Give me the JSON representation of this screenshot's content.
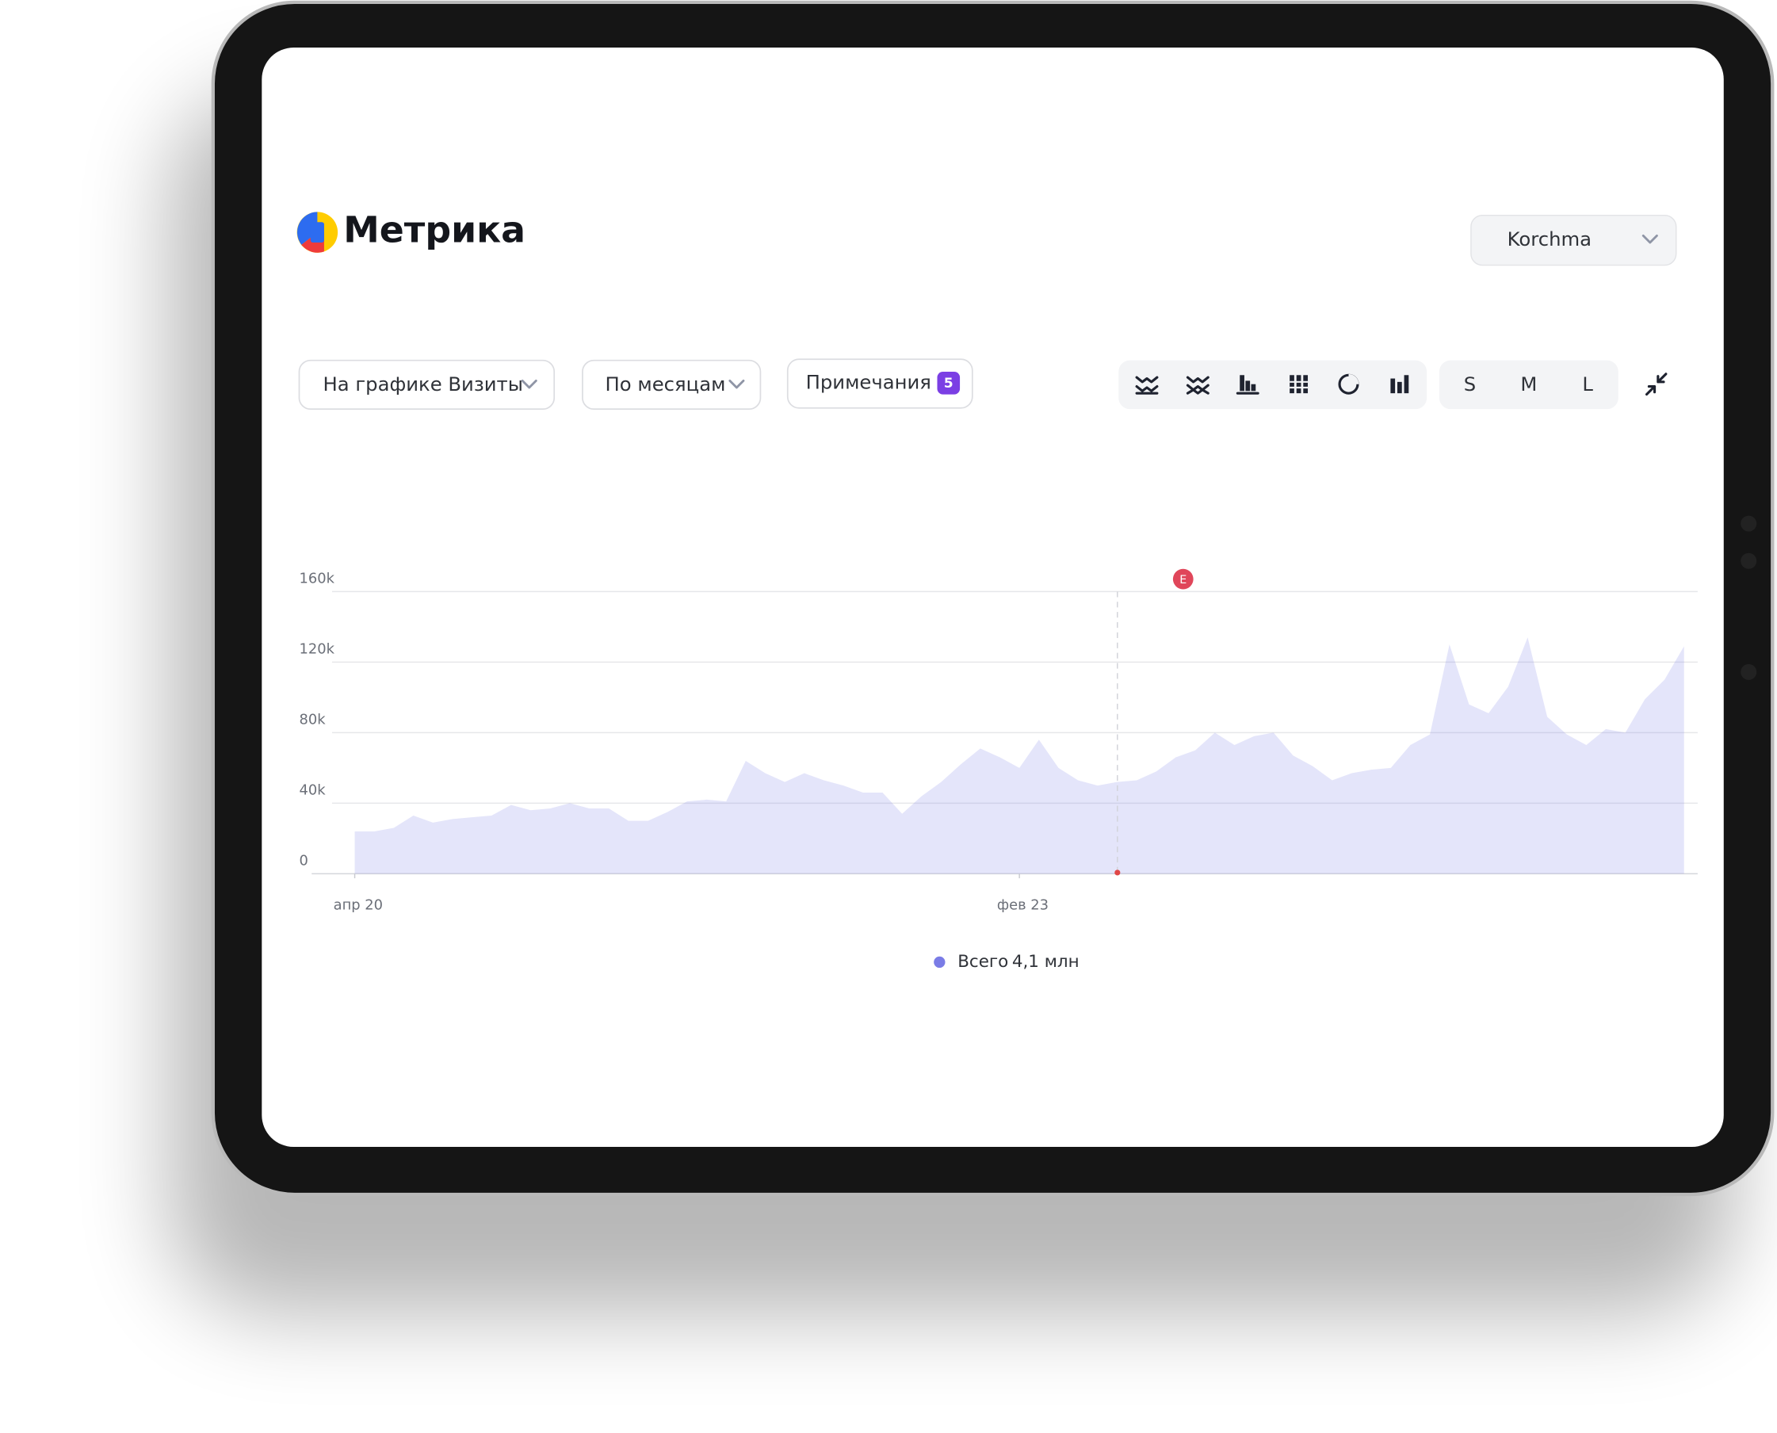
{
  "ui": {
    "logo": "Метрика",
    "counter": "Korchma",
    "controls": [
      "На графике Визиты",
      "По месяцам",
      "Примечания"
    ],
    "notes_badge": "5",
    "sizes": [
      "S",
      "M",
      "L"
    ]
  },
  "chart_data": {
    "type": "area",
    "categories": [
      "апр 20",
      null,
      null,
      null,
      null,
      null,
      null,
      null,
      null,
      null,
      null,
      null,
      null,
      null,
      null,
      null,
      null,
      null,
      null,
      null,
      null,
      null,
      null,
      null,
      null,
      null,
      null,
      null,
      null,
      null,
      null,
      null,
      null,
      null,
      "фев 23",
      null,
      null,
      null,
      null,
      null,
      null,
      null,
      null,
      null,
      null,
      null,
      null,
      null,
      null,
      null,
      null,
      null,
      null,
      null,
      null,
      null,
      null,
      null,
      null,
      null,
      null,
      null,
      null,
      null,
      null,
      null,
      null,
      null,
      null
    ],
    "series": [
      {
        "name": "Всего",
        "color": "#7a7ce6",
        "values": [
          24000,
          24000,
          26000,
          33000,
          29000,
          31000,
          32000,
          33000,
          39000,
          36000,
          37000,
          40000,
          37000,
          37000,
          30000,
          30000,
          35000,
          41000,
          42000,
          41000,
          64000,
          57000,
          52000,
          57000,
          53000,
          50000,
          46000,
          46000,
          34000,
          44000,
          52000,
          62000,
          71000,
          66000,
          60000,
          76000,
          60000,
          53000,
          50000,
          52000,
          53000,
          58000,
          66000,
          70000,
          80000,
          73000,
          78000,
          80000,
          67000,
          61000,
          53000,
          57000,
          59000,
          60000,
          73000,
          79000,
          130000,
          96000,
          91000,
          106000,
          134000,
          89000,
          79000,
          73000,
          82000,
          80000,
          99000,
          110000,
          129000
        ],
        "total_label": "4,1 млн"
      }
    ],
    "annotation": "E",
    "ylim": [
      0,
      160000
    ],
    "yticks": [
      0,
      {
        "value": 40000,
        "label": "40k"
      },
      {
        "value": 80000,
        "label": "80k"
      },
      {
        "value": 120000,
        "label": "120k"
      },
      {
        "value": 160000,
        "label": "160k"
      }
    ],
    "grid": true
  }
}
